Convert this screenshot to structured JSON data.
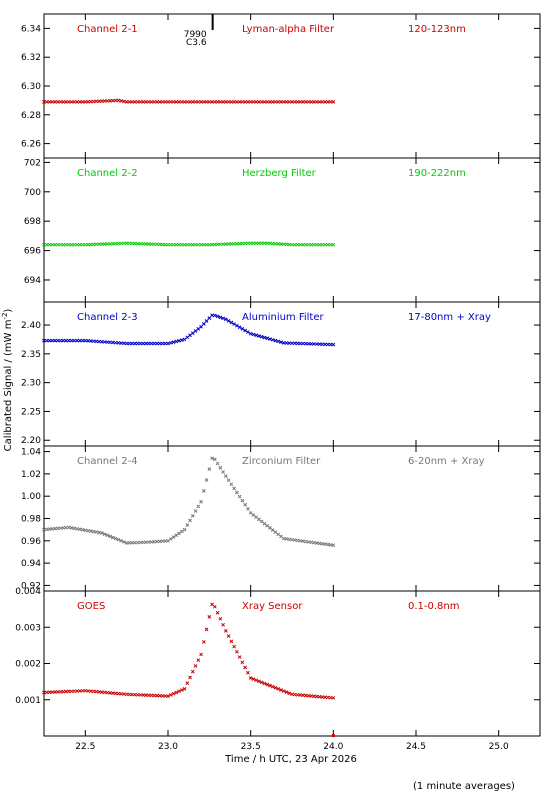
{
  "ylabel": "Calibrated Signal / (mW m",
  "ylabel_sup": "-2",
  "ylabel_end": ")",
  "xlabel": "Time / h UTC, 23 Apr 2026",
  "footnote": "(1 minute averages)",
  "marker": {
    "x": 23.27,
    "line1": "7990",
    "line2": "C3.6"
  },
  "chart_data": [
    {
      "type": "scatter",
      "channel": "Channel 2-1",
      "filter": "Lyman-alpha Filter",
      "band": "120-123nm",
      "color": "#cc0000",
      "xlim": [
        22.25,
        25.25
      ],
      "ylim": [
        6.25,
        6.35
      ],
      "yticks": [
        6.26,
        6.28,
        6.3,
        6.32,
        6.34
      ],
      "ydec": 2,
      "x": [
        22.25,
        22.5,
        22.7,
        22.75,
        23.0,
        23.25,
        23.5,
        23.75,
        24.0
      ],
      "values": [
        6.289,
        6.289,
        6.29,
        6.289,
        6.289,
        6.289,
        6.289,
        6.289,
        6.289
      ]
    },
    {
      "type": "scatter",
      "channel": "Channel 2-2",
      "filter": "Herzberg Filter",
      "band": "190-222nm",
      "color": "#00cc00",
      "xlim": [
        22.25,
        25.25
      ],
      "ylim": [
        692.5,
        702.3
      ],
      "yticks": [
        694,
        696,
        698,
        700,
        702
      ],
      "ydec": 0,
      "x": [
        22.25,
        22.5,
        22.75,
        23.0,
        23.25,
        23.5,
        23.6,
        23.75,
        24.0
      ],
      "values": [
        696.4,
        696.4,
        696.5,
        696.4,
        696.4,
        696.5,
        696.5,
        696.4,
        696.4
      ]
    },
    {
      "type": "scatter",
      "channel": "Channel 2-3",
      "filter": "Aluminium Filter",
      "band": "17-80nm + Xray",
      "color": "#0000cc",
      "xlim": [
        22.25,
        25.25
      ],
      "ylim": [
        2.19,
        2.44
      ],
      "yticks": [
        2.2,
        2.25,
        2.3,
        2.35,
        2.4
      ],
      "ydec": 2,
      "x": [
        22.25,
        22.5,
        22.75,
        23.0,
        23.1,
        23.2,
        23.27,
        23.35,
        23.5,
        23.7,
        24.0
      ],
      "values": [
        2.373,
        2.373,
        2.368,
        2.368,
        2.375,
        2.397,
        2.418,
        2.41,
        2.385,
        2.369,
        2.366
      ]
    },
    {
      "type": "scatter",
      "channel": "Channel 2-4",
      "filter": "Zirconium Filter",
      "band": "6-20nm + Xray",
      "color": "#777777",
      "xlim": [
        22.25,
        25.25
      ],
      "ylim": [
        0.915,
        1.045
      ],
      "yticks": [
        0.92,
        0.94,
        0.96,
        0.98,
        1.0,
        1.02,
        1.04
      ],
      "ydec": 2,
      "x": [
        22.25,
        22.4,
        22.6,
        22.75,
        22.9,
        23.0,
        23.1,
        23.2,
        23.27,
        23.35,
        23.5,
        23.7,
        24.0
      ],
      "values": [
        0.97,
        0.972,
        0.967,
        0.958,
        0.959,
        0.96,
        0.97,
        0.995,
        1.036,
        1.018,
        0.985,
        0.962,
        0.956
      ]
    },
    {
      "type": "scatter",
      "channel": "GOES",
      "filter": "Xray Sensor",
      "band": "0.1-0.8nm",
      "color": "#cc0000",
      "xlim": [
        22.25,
        25.25
      ],
      "ylim": [
        0.0,
        0.004
      ],
      "yticks": [
        0.001,
        0.002,
        0.003,
        0.004
      ],
      "ydec": 3,
      "x": [
        22.25,
        22.5,
        22.75,
        23.0,
        23.1,
        23.2,
        23.27,
        23.35,
        23.5,
        23.75,
        24.0
      ],
      "values": [
        0.0012,
        0.00125,
        0.00115,
        0.0011,
        0.0013,
        0.00225,
        0.0037,
        0.0029,
        0.0016,
        0.00115,
        0.00105
      ]
    }
  ],
  "xticks": [
    22.5,
    23.0,
    23.5,
    24.0,
    24.5,
    25.0
  ]
}
